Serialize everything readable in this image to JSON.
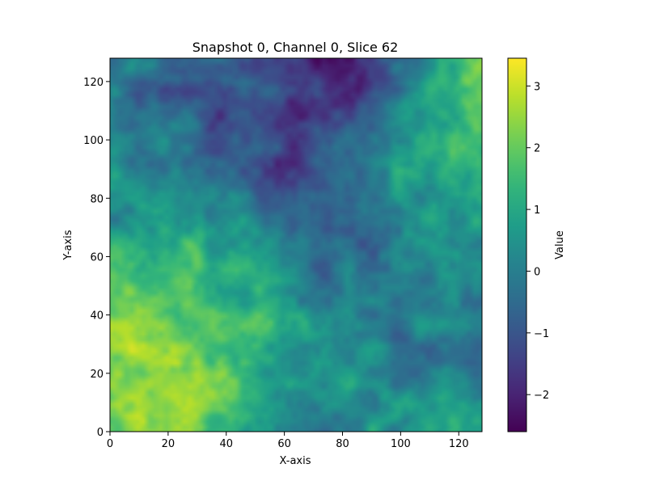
{
  "chart_data": {
    "type": "heatmap",
    "title": "Snapshot 0, Channel 0, Slice 62",
    "xlabel": "X-axis",
    "ylabel": "Y-axis",
    "xlim": [
      0,
      128
    ],
    "ylim": [
      0,
      128
    ],
    "x_ticks": [
      0,
      20,
      40,
      60,
      80,
      100,
      120
    ],
    "y_ticks": [
      0,
      20,
      40,
      60,
      80,
      100,
      120
    ],
    "grid": false,
    "colormap": "viridis",
    "colorbar": {
      "label": "Value",
      "vmin": -2.6,
      "vmax": 3.45,
      "ticks": [
        -2,
        -1,
        0,
        1,
        2,
        3
      ],
      "tick_labels": [
        "−2",
        "−1",
        "0",
        "1",
        "2",
        "3"
      ]
    },
    "grid_size": [
      128,
      128
    ],
    "field_regions": [
      {
        "x": 10,
        "y": 18,
        "value": 2.8
      },
      {
        "x": 4,
        "y": 40,
        "value": 2.9
      },
      {
        "x": 22,
        "y": 10,
        "value": 2.6
      },
      {
        "x": 42,
        "y": 4,
        "value": 2.9
      },
      {
        "x": 30,
        "y": 30,
        "value": 1.6
      },
      {
        "x": 35,
        "y": 55,
        "value": 1.4
      },
      {
        "x": 60,
        "y": 30,
        "value": 1.2
      },
      {
        "x": 55,
        "y": 5,
        "value": -0.8
      },
      {
        "x": 60,
        "y": 95,
        "value": -1.6
      },
      {
        "x": 40,
        "y": 105,
        "value": -1.1
      },
      {
        "x": 90,
        "y": 123,
        "value": -2.3
      },
      {
        "x": 120,
        "y": 120,
        "value": 2.3
      },
      {
        "x": 108,
        "y": 105,
        "value": 1.3
      },
      {
        "x": 108,
        "y": 60,
        "value": 0.8
      },
      {
        "x": 85,
        "y": 55,
        "value": -0.9
      },
      {
        "x": 112,
        "y": 25,
        "value": -0.6
      },
      {
        "x": 10,
        "y": 85,
        "value": 0.3
      },
      {
        "x": 70,
        "y": 70,
        "value": -0.5
      },
      {
        "x": 95,
        "y": 10,
        "value": 0.7
      },
      {
        "x": 125,
        "y": 5,
        "value": 1.0
      }
    ],
    "base_value": 0.0
  }
}
